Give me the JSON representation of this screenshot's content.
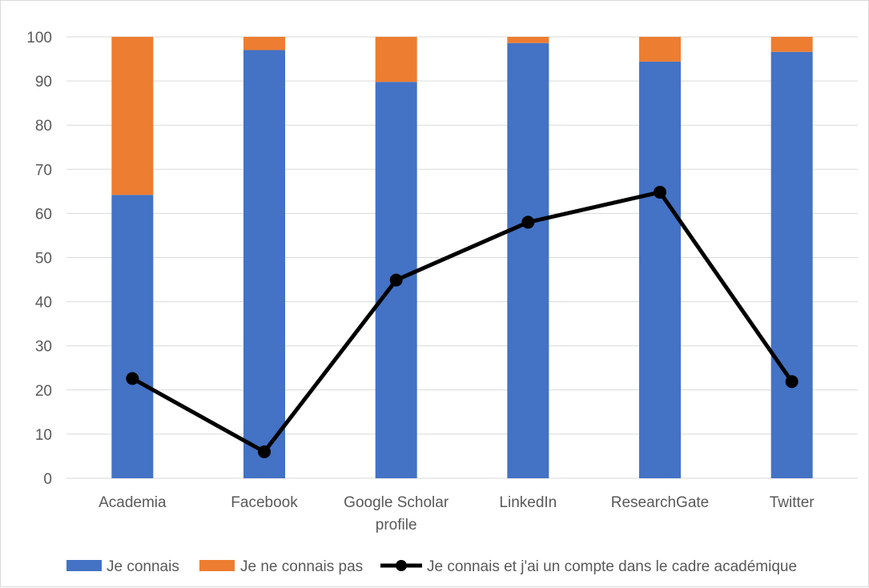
{
  "chart_data": {
    "type": "bar",
    "stacked": true,
    "categories": [
      [
        "Academia"
      ],
      [
        "Facebook"
      ],
      [
        "Google Scholar",
        "profile"
      ],
      [
        "LinkedIn"
      ],
      [
        "ResearchGate"
      ],
      [
        "Twitter"
      ]
    ],
    "series": [
      {
        "name": "Je connais",
        "type": "bar",
        "color": "#4472C4",
        "values": [
          64.2,
          97.0,
          89.8,
          98.6,
          94.4,
          96.6
        ]
      },
      {
        "name": "Je ne connais pas",
        "type": "bar",
        "color": "#ED7D31",
        "values": [
          35.8,
          3.0,
          10.2,
          1.4,
          5.6,
          3.4
        ]
      },
      {
        "name": "Je connais et j'ai un compte dans le cadre académique",
        "type": "line",
        "color": "#000000",
        "values": [
          22.6,
          6.0,
          44.9,
          58.0,
          64.8,
          21.9
        ]
      }
    ],
    "ylim": [
      0,
      100
    ],
    "yticks": [
      0,
      10,
      20,
      30,
      40,
      50,
      60,
      70,
      80,
      90,
      100
    ],
    "grid": true,
    "legend_position": "bottom"
  }
}
